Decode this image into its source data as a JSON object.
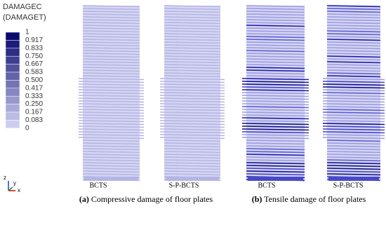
{
  "legend": {
    "title": [
      "DAMAGEC",
      "(DAMAGET)"
    ],
    "labels": [
      "1",
      "0.917",
      "0.833",
      "0.750",
      "0.667",
      "0.583",
      "0.500",
      "0.417",
      "0.333",
      "0.250",
      "0.167",
      "0.083",
      "0"
    ]
  },
  "panels": [
    {
      "tag": "(a)",
      "caption": "Compressive damage of floor plates",
      "models": [
        "BCTS",
        "S-P-BCTS"
      ]
    },
    {
      "tag": "(b)",
      "caption": "Tensile damage of floor plates",
      "models": [
        "BCTS",
        "S-P-BCTS"
      ]
    }
  ],
  "triad": [
    "z",
    "y",
    "x"
  ]
}
